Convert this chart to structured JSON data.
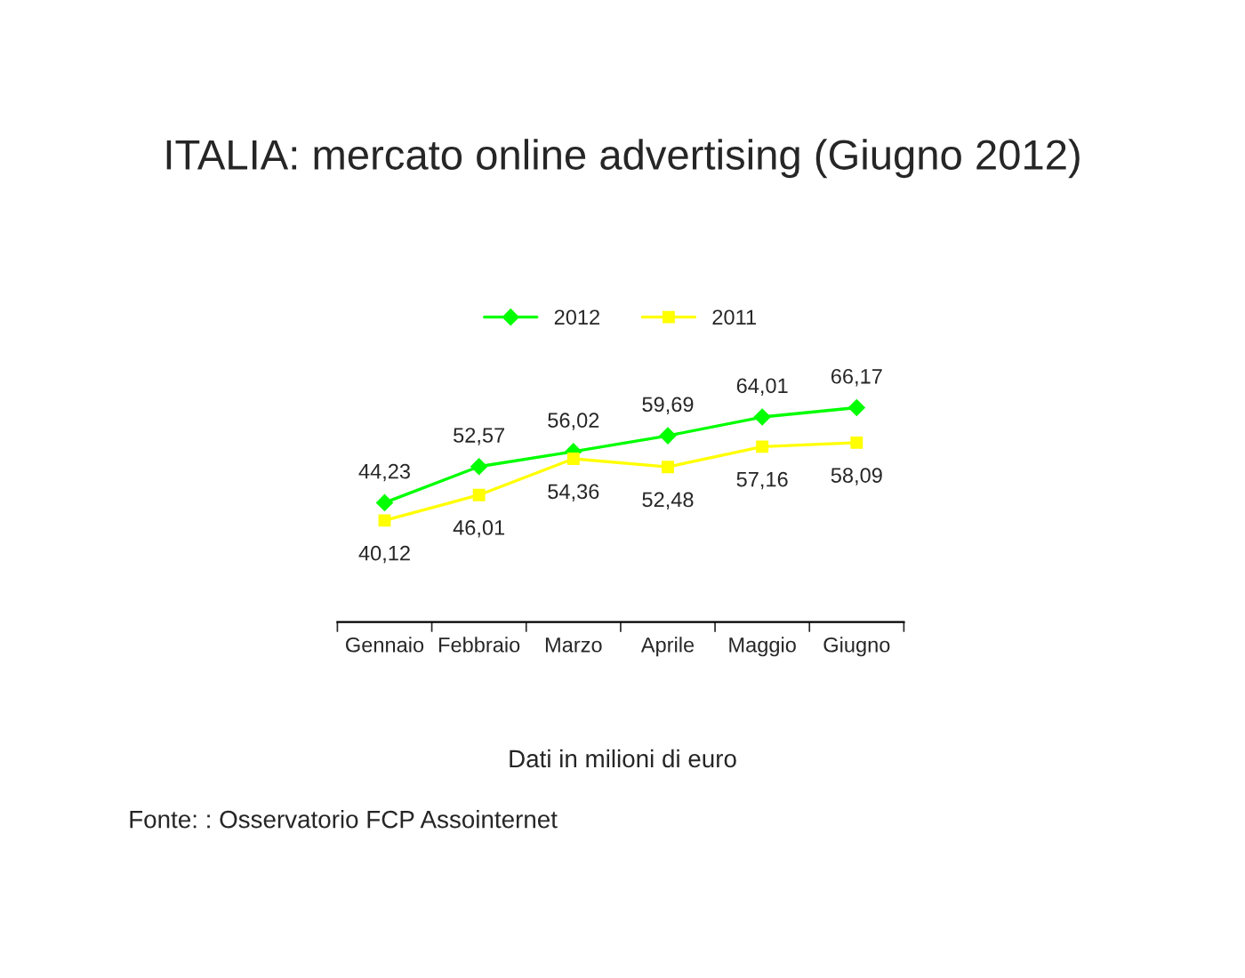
{
  "chart_data": {
    "type": "line",
    "title": "ITALIA: mercato online advertising (Giugno 2012)",
    "categories": [
      "Gennaio",
      "Febbraio",
      "Marzo",
      "Aprile",
      "Maggio",
      "Giugno"
    ],
    "series": [
      {
        "name": "2012",
        "color": "#00ff00",
        "values": [
          44.23,
          52.57,
          56.02,
          59.69,
          64.01,
          66.17
        ],
        "value_labels": [
          "44,23",
          "52,57",
          "56,02",
          "59,69",
          "64,01",
          "66,17"
        ],
        "marker": "diamond"
      },
      {
        "name": "2011",
        "color": "#ffff00",
        "values": [
          40.12,
          46.01,
          54.36,
          52.48,
          57.16,
          58.09
        ],
        "value_labels": [
          "40,12",
          "46,01",
          "54,36",
          "52,48",
          "57,16",
          "58,09"
        ],
        "marker": "square"
      }
    ],
    "tick_labels": "x",
    "legend": "top",
    "grid": false,
    "annotations": [
      "Dati in milioni di euro",
      "Fonte: : Osservatorio FCP Assointernet"
    ]
  }
}
